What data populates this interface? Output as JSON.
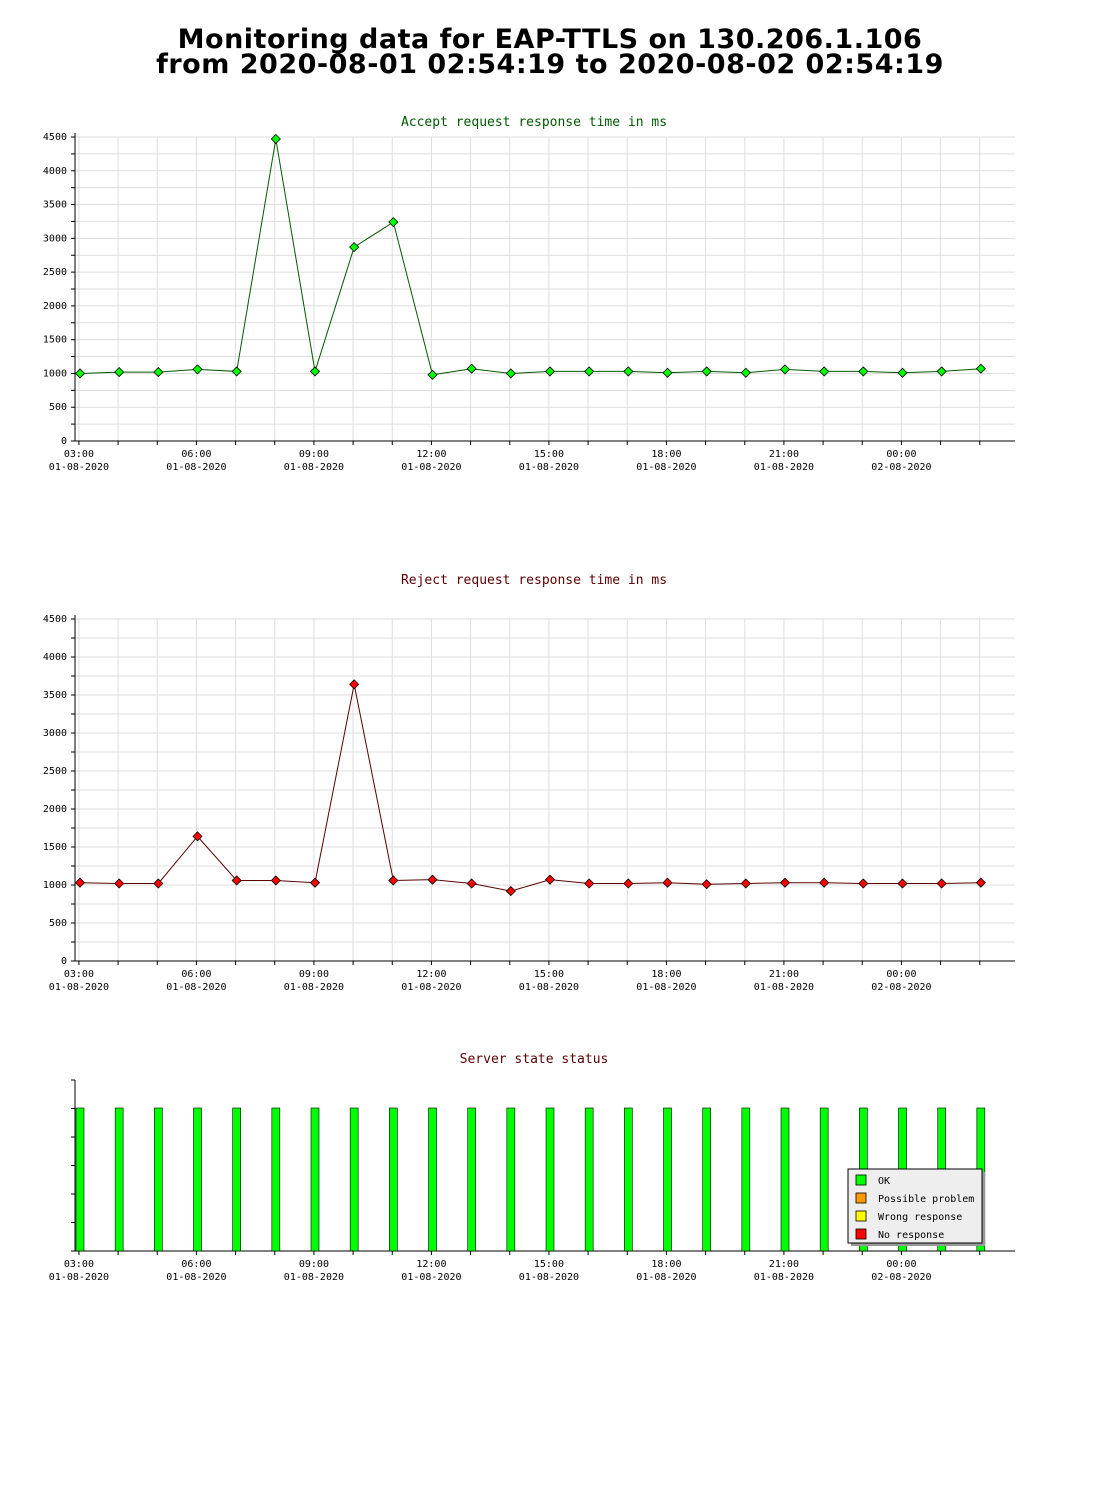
{
  "page": {
    "title_line1": "Monitoring data for EAP-TTLS on 130.206.1.106",
    "title_line2": "from 2020-08-01 02:54:19 to 2020-08-02 02:54:19"
  },
  "x_axis_labels": [
    {
      "time": "03:00",
      "date": "01-08-2020"
    },
    {
      "time": "06:00",
      "date": "01-08-2020"
    },
    {
      "time": "09:00",
      "date": "01-08-2020"
    },
    {
      "time": "12:00",
      "date": "01-08-2020"
    },
    {
      "time": "15:00",
      "date": "01-08-2020"
    },
    {
      "time": "18:00",
      "date": "01-08-2020"
    },
    {
      "time": "21:00",
      "date": "01-08-2020"
    },
    {
      "time": "00:00",
      "date": "02-08-2020"
    }
  ],
  "chart_data": [
    {
      "type": "line",
      "title": "Accept request response time in ms",
      "color": "#00ff00",
      "line_color": "#005a00",
      "title_color": "#005a00",
      "ylim": [
        0,
        4500
      ],
      "yticks": [
        0,
        500,
        1000,
        1500,
        2000,
        2500,
        3000,
        3500,
        4000,
        4500
      ],
      "grid": true,
      "x": [
        "2020-08-01 02:54",
        "2020-08-01 03:54",
        "2020-08-01 04:54",
        "2020-08-01 05:54",
        "2020-08-01 06:54",
        "2020-08-01 07:54",
        "2020-08-01 08:54",
        "2020-08-01 09:54",
        "2020-08-01 10:54",
        "2020-08-01 11:54",
        "2020-08-01 12:54",
        "2020-08-01 13:54",
        "2020-08-01 14:54",
        "2020-08-01 15:54",
        "2020-08-01 16:54",
        "2020-08-01 17:54",
        "2020-08-01 18:54",
        "2020-08-01 19:54",
        "2020-08-01 20:54",
        "2020-08-01 21:54",
        "2020-08-01 22:54",
        "2020-08-01 23:54",
        "2020-08-02 00:54",
        "2020-08-02 01:54"
      ],
      "values": [
        1000,
        1020,
        1020,
        1060,
        1030,
        4470,
        1030,
        2870,
        3240,
        980,
        1070,
        1000,
        1030,
        1030,
        1030,
        1010,
        1030,
        1010,
        1060,
        1030,
        1030,
        1010,
        1030,
        1070
      ]
    },
    {
      "type": "line",
      "title": "Reject request response time in ms",
      "color": "#ff0000",
      "line_color": "#5a0000",
      "title_color": "#5a0000",
      "ylim": [
        0,
        4500
      ],
      "yticks": [
        0,
        500,
        1000,
        1500,
        2000,
        2500,
        3000,
        3500,
        4000,
        4500
      ],
      "grid": true,
      "x": [
        "2020-08-01 02:54",
        "2020-08-01 03:54",
        "2020-08-01 04:54",
        "2020-08-01 05:54",
        "2020-08-01 06:54",
        "2020-08-01 07:54",
        "2020-08-01 08:54",
        "2020-08-01 09:54",
        "2020-08-01 10:54",
        "2020-08-01 11:54",
        "2020-08-01 12:54",
        "2020-08-01 13:54",
        "2020-08-01 14:54",
        "2020-08-01 15:54",
        "2020-08-01 16:54",
        "2020-08-01 17:54",
        "2020-08-01 18:54",
        "2020-08-01 19:54",
        "2020-08-01 20:54",
        "2020-08-01 21:54",
        "2020-08-01 22:54",
        "2020-08-01 23:54",
        "2020-08-02 00:54",
        "2020-08-02 01:54"
      ],
      "values": [
        1030,
        1020,
        1020,
        1640,
        1060,
        1060,
        1030,
        3640,
        1060,
        1070,
        1020,
        920,
        1070,
        1020,
        1020,
        1030,
        1010,
        1020,
        1030,
        1030,
        1020,
        1020,
        1020,
        1030
      ]
    },
    {
      "type": "bar",
      "title": "Server state status",
      "title_color": "#5a0000",
      "x": [
        "2020-08-01 02:54",
        "2020-08-01 03:54",
        "2020-08-01 04:54",
        "2020-08-01 05:54",
        "2020-08-01 06:54",
        "2020-08-01 07:54",
        "2020-08-01 08:54",
        "2020-08-01 09:54",
        "2020-08-01 10:54",
        "2020-08-01 11:54",
        "2020-08-01 12:54",
        "2020-08-01 13:54",
        "2020-08-01 14:54",
        "2020-08-01 15:54",
        "2020-08-01 16:54",
        "2020-08-01 17:54",
        "2020-08-01 18:54",
        "2020-08-01 19:54",
        "2020-08-01 20:54",
        "2020-08-01 21:54",
        "2020-08-01 22:54",
        "2020-08-01 23:54",
        "2020-08-02 00:54",
        "2020-08-02 01:54"
      ],
      "statuses": [
        "OK",
        "OK",
        "OK",
        "OK",
        "OK",
        "OK",
        "OK",
        "OK",
        "OK",
        "OK",
        "OK",
        "OK",
        "OK",
        "OK",
        "OK",
        "OK",
        "OK",
        "OK",
        "OK",
        "OK",
        "OK",
        "OK",
        "OK",
        "OK"
      ],
      "legend_position": "bottom-right",
      "legend": [
        {
          "label": "OK",
          "color": "#00ff00"
        },
        {
          "label": "Possible problem",
          "color": "#ff9900"
        },
        {
          "label": "Wrong response",
          "color": "#ffff00"
        },
        {
          "label": "No response",
          "color": "#ff0000"
        }
      ]
    }
  ]
}
